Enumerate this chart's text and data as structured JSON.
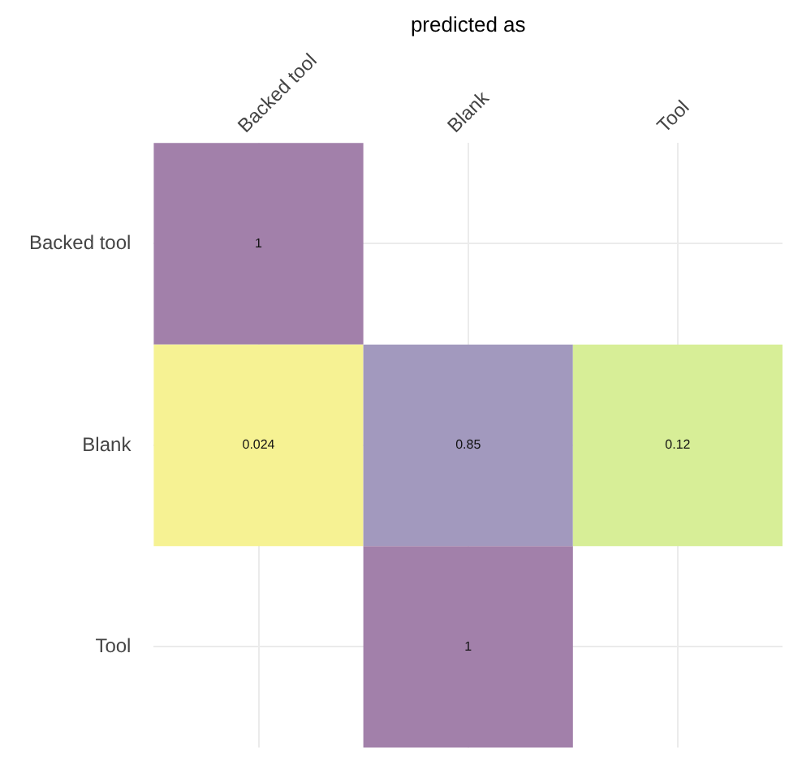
{
  "chart_data": {
    "type": "heatmap",
    "xlabel": "predicted as",
    "categories": [
      "Backed tool",
      "Blank",
      "Tool"
    ],
    "y_categories": [
      "Backed tool",
      "Blank",
      "Tool"
    ],
    "cells": [
      [
        1,
        null,
        null
      ],
      [
        0.024,
        0.85,
        0.12
      ],
      [
        null,
        1,
        null
      ]
    ],
    "data_labels": true,
    "grid": true
  }
}
